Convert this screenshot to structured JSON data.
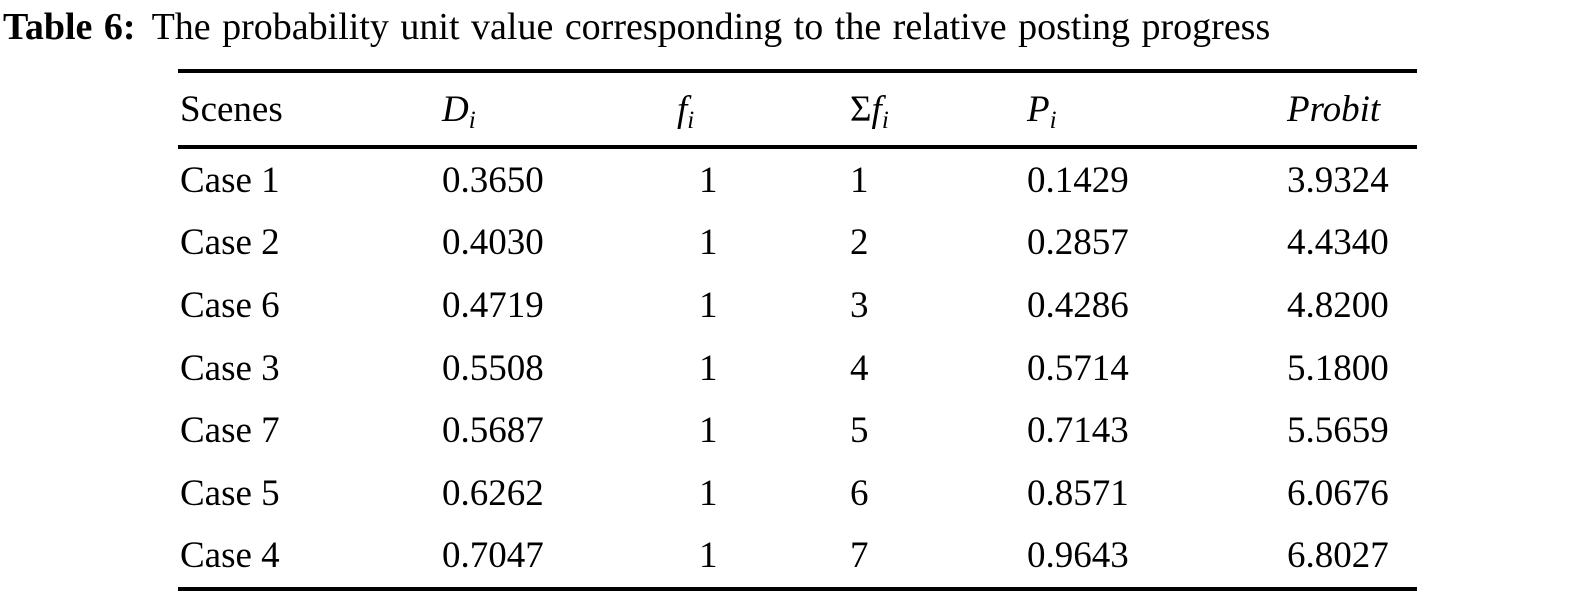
{
  "caption": {
    "label": "Table 6:",
    "text": "The probability unit value corresponding to the relative posting progress"
  },
  "table": {
    "columns": [
      {
        "prefix": "",
        "base": "Scenes",
        "sub": ""
      },
      {
        "prefix": "",
        "base": "D",
        "sub": "i"
      },
      {
        "prefix": "",
        "base": "f",
        "sub": "i"
      },
      {
        "prefix": "Σ",
        "base": "f",
        "sub": "i"
      },
      {
        "prefix": "",
        "base": "P",
        "sub": "i"
      },
      {
        "prefix": "",
        "base": "Probit",
        "sub": ""
      }
    ],
    "rows": [
      [
        "Case 1",
        "0.3650",
        "1",
        "1",
        "0.1429",
        "3.9324"
      ],
      [
        "Case 2",
        "0.4030",
        "1",
        "2",
        "0.2857",
        "4.4340"
      ],
      [
        "Case 6",
        "0.4719",
        "1",
        "3",
        "0.4286",
        "4.8200"
      ],
      [
        "Case 3",
        "0.5508",
        "1",
        "4",
        "0.5714",
        "5.1800"
      ],
      [
        "Case 7",
        "0.5687",
        "1",
        "5",
        "0.7143",
        "5.5659"
      ],
      [
        "Case 5",
        "0.6262",
        "1",
        "6",
        "0.8571",
        "6.0676"
      ],
      [
        "Case 4",
        "0.7047",
        "1",
        "7",
        "0.9643",
        "6.8027"
      ]
    ],
    "text_color": "#000000",
    "background_color": "#ffffff"
  }
}
